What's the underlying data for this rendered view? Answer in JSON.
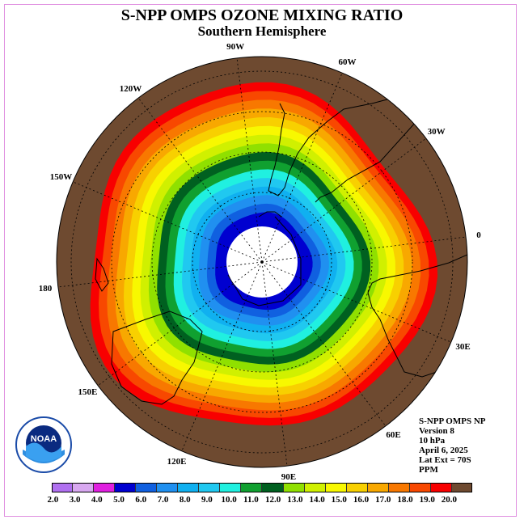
{
  "title": "S-NPP OMPS OZONE MIXING RATIO",
  "subtitle": "Southern Hemisphere",
  "longitude_labels": [
    "90W",
    "60W",
    "30W",
    "0",
    "30E",
    "60E",
    "90E",
    "120E",
    "150E",
    "180",
    "150W",
    "120W"
  ],
  "info": {
    "line1": "S-NPP OMPS NP",
    "line2": "Version 8",
    "line3": "10 hPa",
    "line4": "April 6, 2025",
    "line5": "Lat Ext = 70S",
    "line6": "PPM"
  },
  "logo": {
    "text": "NOAA",
    "icon": "noaa-logo-icon"
  },
  "colorbar": {
    "ticks": [
      "2.0",
      "3.0",
      "4.0",
      "5.0",
      "6.0",
      "7.0",
      "8.0",
      "9.0",
      "10.0",
      "11.0",
      "12.0",
      "13.0",
      "14.0",
      "15.0",
      "16.0",
      "17.0",
      "18.0",
      "19.0",
      "20.0"
    ],
    "colors": [
      "#b070f0",
      "#d8a8f0",
      "#e020e0",
      "#0000d0",
      "#1060e0",
      "#2090f0",
      "#10b0f0",
      "#20c8f0",
      "#20f0e0",
      "#10a030",
      "#006020",
      "#90e000",
      "#d0f000",
      "#f8f800",
      "#f8d000",
      "#f8a800",
      "#f87800",
      "#f84800",
      "#f80000",
      "#6e4a30"
    ]
  },
  "contour_colors": [
    "#6e4a30",
    "#f80000",
    "#f84800",
    "#f87800",
    "#f8a800",
    "#f8d000",
    "#f8f800",
    "#d0f000",
    "#90e000",
    "#006020",
    "#10a030",
    "#20f0e0",
    "#20c8f0",
    "#10b0f0",
    "#2090f0",
    "#1060e0",
    "#0000d0"
  ],
  "map": {
    "projection": "polar-stereographic-south",
    "lat_extent_deg": 70
  }
}
